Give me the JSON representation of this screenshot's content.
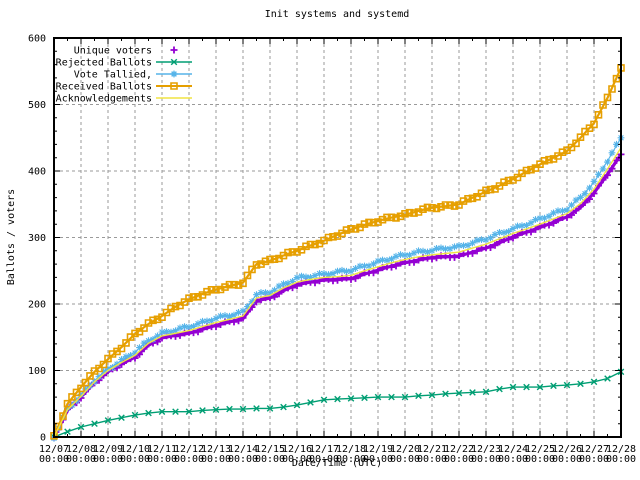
{
  "chart_data": {
    "type": "line",
    "title": "Init systems and systemd",
    "xlabel": "Date/Time (UTC)",
    "ylabel": "Ballots / voters",
    "ylim": [
      0,
      600
    ],
    "y_ticks": [
      0,
      100,
      200,
      300,
      400,
      500,
      600
    ],
    "x_range_days": [
      0,
      21
    ],
    "x_tick_dates": [
      "12/07",
      "12/08",
      "12/09",
      "12/10",
      "12/11",
      "12/12",
      "12/13",
      "12/14",
      "12/15",
      "12/16",
      "12/17",
      "12/18",
      "12/19",
      "12/20",
      "12/21",
      "12/22",
      "12/23",
      "12/24",
      "12/25",
      "12/26",
      "12/27",
      "12/28"
    ],
    "x_tick_time": "00:00",
    "grid": "dashed",
    "grid_color": "#9a9a9a",
    "legend_position": "top-left",
    "x_days": [
      0,
      0.5,
      1,
      1.5,
      2,
      2.5,
      3,
      3.5,
      4,
      4.5,
      5,
      5.5,
      6,
      6.5,
      7,
      7.5,
      8,
      8.5,
      9,
      9.5,
      10,
      10.5,
      11,
      11.5,
      12,
      12.5,
      13,
      13.5,
      14,
      14.5,
      15,
      15.5,
      16,
      16.5,
      17,
      17.5,
      18,
      18.5,
      19,
      19.5,
      20,
      20.5,
      21
    ],
    "series": [
      {
        "name": "Unique voters",
        "color": "#9400D3",
        "marker": "plus",
        "style": "points",
        "values": [
          0,
          40,
          60,
          82,
          98,
          110,
          120,
          138,
          149,
          153,
          156,
          162,
          168,
          173,
          178,
          205,
          209,
          220,
          229,
          233,
          236,
          237,
          238,
          245,
          251,
          257,
          262,
          266,
          270,
          271,
          272,
          278,
          284,
          292,
          301,
          308,
          315,
          323,
          331,
          345,
          367,
          395,
          425
        ]
      },
      {
        "name": "Rejected Ballots",
        "color": "#009E73",
        "marker": "cross",
        "style": "linespoints",
        "values": [
          0,
          8,
          15,
          20,
          25,
          29,
          33,
          36,
          38,
          38,
          38,
          40,
          41,
          42,
          42,
          43,
          43,
          45,
          48,
          52,
          56,
          57,
          58,
          59,
          60,
          60,
          60,
          62,
          63,
          65,
          66,
          67,
          68,
          72,
          75,
          75,
          75,
          77,
          78,
          80,
          83,
          88,
          98
        ]
      },
      {
        "name": "Vote Tallied,",
        "color": "#56B4E9",
        "marker": "asterisk",
        "style": "linespoints",
        "values": [
          0,
          42,
          63,
          85,
          102,
          115,
          128,
          145,
          156,
          161,
          166,
          172,
          179,
          183,
          188,
          214,
          218,
          229,
          239,
          242,
          245,
          248,
          251,
          257,
          263,
          269,
          274,
          278,
          281,
          284,
          286,
          292,
          298,
          306,
          313,
          320,
          328,
          336,
          343,
          360,
          383,
          415,
          450
        ]
      },
      {
        "name": "Received Ballots",
        "color": "#E69F00",
        "marker": "square",
        "style": "linespoints",
        "values": [
          0,
          50,
          75,
          98,
          117,
          135,
          155,
          170,
          182,
          196,
          207,
          215,
          222,
          227,
          232,
          260,
          265,
          273,
          280,
          288,
          295,
          304,
          312,
          319,
          325,
          330,
          334,
          340,
          345,
          347,
          350,
          360,
          369,
          378,
          388,
          399,
          410,
          420,
          430,
          450,
          472,
          510,
          555
        ]
      },
      {
        "name": "Acknowledgements",
        "color": "#F0E442",
        "marker": "none",
        "style": "lines",
        "values": [
          0,
          41,
          61,
          83,
          100,
          112,
          123,
          141,
          152,
          156,
          160,
          166,
          172,
          177,
          182,
          209,
          213,
          224,
          233,
          237,
          240,
          241,
          243,
          250,
          256,
          262,
          267,
          271,
          274,
          276,
          278,
          284,
          290,
          298,
          306,
          313,
          320,
          328,
          336,
          351,
          373,
          403,
          435
        ]
      }
    ]
  }
}
